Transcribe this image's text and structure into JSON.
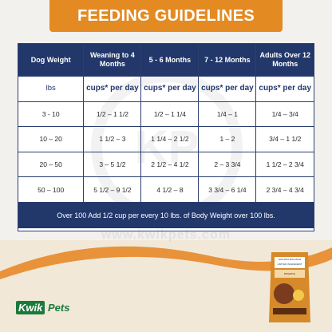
{
  "header": {
    "title": "FEEDING GUIDELINES"
  },
  "watermark": {
    "monogram": "KP",
    "site": "www.kwikpets.com"
  },
  "table": {
    "columns": [
      "Dog Weight",
      "Weaning to 4 Months",
      "5 - 6 Months",
      "7 - 12 Months",
      "Adults Over 12 Months"
    ],
    "units": [
      "lbs",
      "cups* per day",
      "cups* per day",
      "cups* per day",
      "cups* per day"
    ],
    "rows": [
      [
        "3 - 10",
        "1/2 – 1 1/2",
        "1/2 – 1 1/4",
        "1/4 – 1",
        "1/4 – 3/4"
      ],
      [
        "10 – 20",
        "1 1/2 – 3",
        "1 1/4 – 2 1/2",
        "1 – 2",
        "3/4 – 1 1/2"
      ],
      [
        "20 – 50",
        "3 – 5 1/2",
        "2 1/2 – 4 1/2",
        "2 – 3 3/4",
        "1 1/2 – 2 3/4"
      ],
      [
        "50 – 100",
        "5 1/2 – 9 1/2",
        "4 1/2 – 8",
        "3 3/4 – 6 1/4",
        "2 3/4 – 4 3/4"
      ]
    ],
    "footer": "Over 100 Add 1/2 cup per every 10 lbs. of Body Weight over 100 lbs."
  },
  "logo": {
    "kwik": "Kwik",
    "pets": "Pets"
  },
  "product": {
    "brand": "NATURAL BALANCE",
    "line": "LIMITED INGREDIENT",
    "tag": "RESERVE"
  },
  "colors": {
    "accent": "#e48a22",
    "navy": "#22376a",
    "brand_green": "#1a7a3a"
  }
}
